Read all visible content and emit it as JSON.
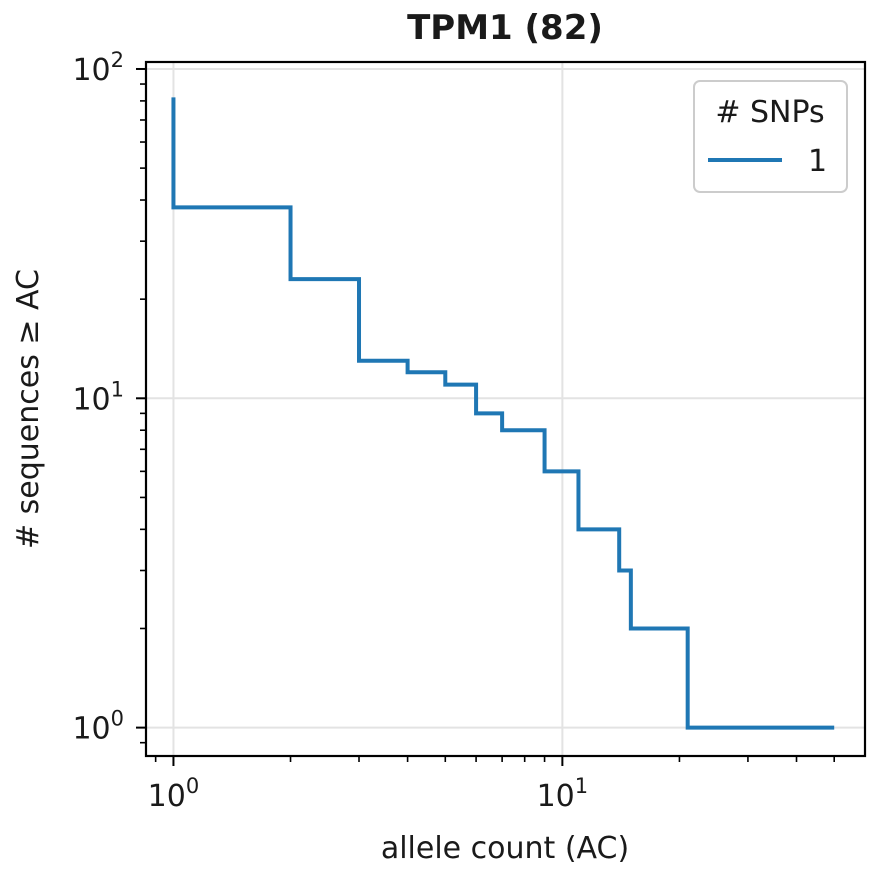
{
  "chart_data": {
    "type": "line",
    "title": "TPM1 (82)",
    "xlabel": "allele count (AC)",
    "ylabel": "# sequences ≥ AC",
    "x_scale": "log",
    "y_scale": "log",
    "xlim": [
      0.85,
      60
    ],
    "ylim": [
      0.82,
      105
    ],
    "x_tick_labels": [
      {
        "value": 1,
        "base": "10",
        "exp": "0"
      },
      {
        "value": 10,
        "base": "10",
        "exp": "1"
      }
    ],
    "y_tick_labels": [
      {
        "value": 1,
        "base": "10",
        "exp": "0"
      },
      {
        "value": 10,
        "base": "10",
        "exp": "1"
      },
      {
        "value": 100,
        "base": "10",
        "exp": "2"
      }
    ],
    "grid": true,
    "legend": {
      "title": "# SNPs",
      "placement": "top-right"
    },
    "series": [
      {
        "name": "1",
        "color": "#1f77b4",
        "step": "post",
        "x": [
          1,
          1,
          2,
          3,
          4,
          5,
          6,
          7,
          9,
          11,
          14,
          15,
          21,
          50
        ],
        "y": [
          82,
          38,
          23,
          13,
          12,
          11,
          9,
          8,
          6,
          4,
          3,
          2,
          1,
          1
        ]
      }
    ]
  }
}
